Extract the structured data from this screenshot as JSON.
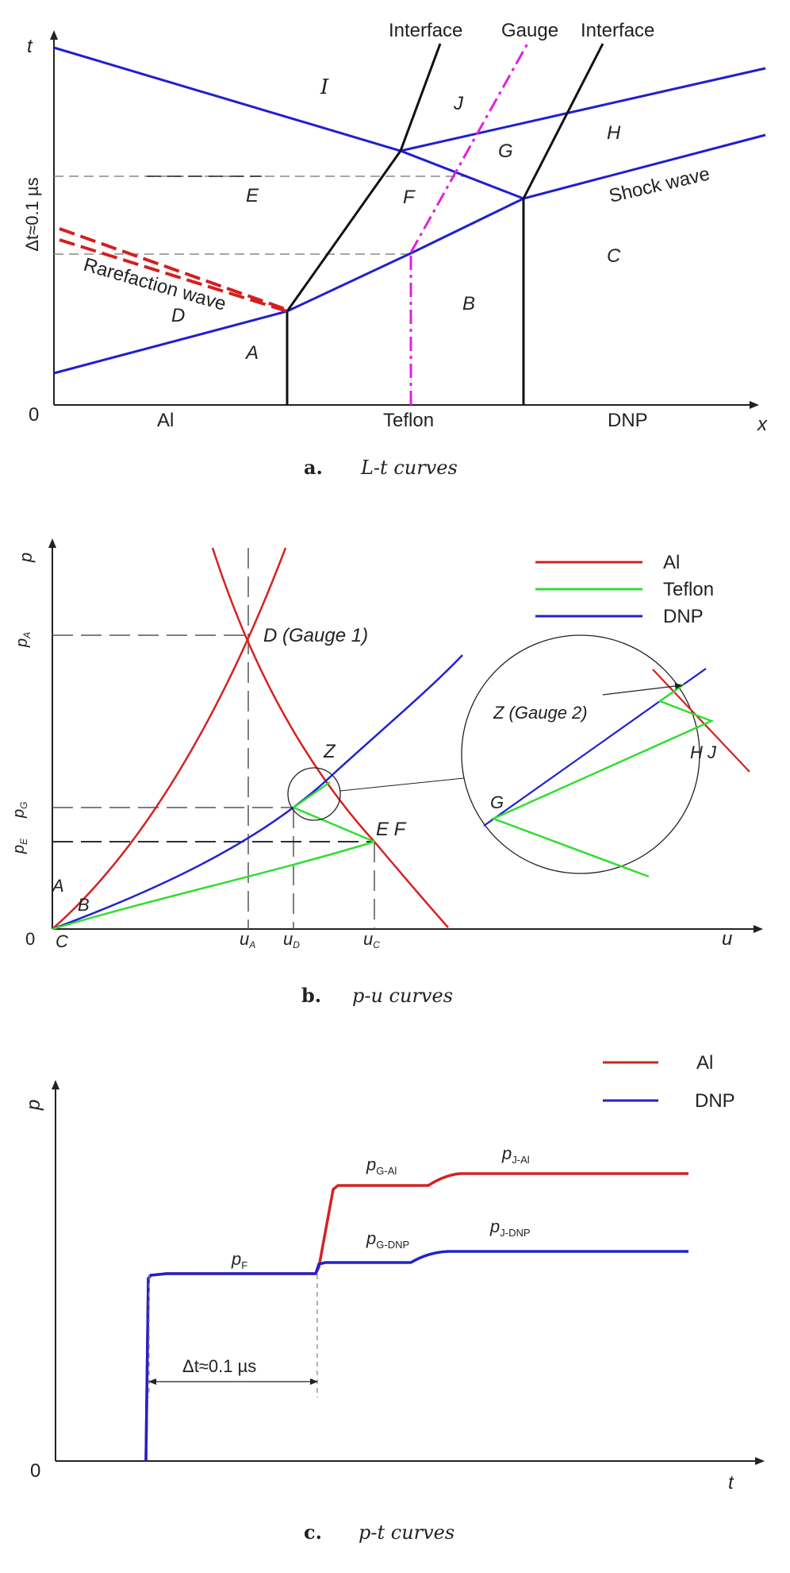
{
  "panel_a": {
    "axis": {
      "t": "t",
      "x": "x",
      "origin": "0",
      "dt": "Δt≈0.1 µs"
    },
    "top": {
      "interface_left": "Interface",
      "gauge": "Gauge",
      "interface_right": "Interface"
    },
    "regions": {
      "I": "I",
      "J": "J",
      "G": "G",
      "H": "H",
      "E": "E",
      "F": "F",
      "C": "C",
      "B": "B",
      "D": "D",
      "A": "A"
    },
    "waves": {
      "shock": "Shock wave",
      "rarefaction": "Rarefaction wave"
    },
    "materials": {
      "al": "Al",
      "teflon": "Teflon",
      "dnp": "DNP"
    },
    "caption": {
      "letter": "a.",
      "text": "L-t curves"
    },
    "colors": {
      "blue": "#1f1fd0",
      "red": "#d41f1f",
      "magenta": "#e020e0",
      "black": "#111111"
    }
  },
  "panel_b": {
    "axis": {
      "p": "p",
      "u": "u",
      "origin": "0"
    },
    "ticks": {
      "pA": "pA",
      "pG": "pG",
      "pE": "pE",
      "uA": "uA",
      "uD": "uD",
      "uC": "uC"
    },
    "points": {
      "D": "D (Gauge 1)",
      "Z": "Z",
      "EF": "E F",
      "A": "A",
      "B": "B",
      "C": "C"
    },
    "inset": {
      "Z": "Z (Gauge 2)",
      "HJ": "H J",
      "G": "G"
    },
    "legend": {
      "al": "Al",
      "teflon": "Teflon",
      "dnp": "DNP"
    },
    "caption": {
      "letter": "b.",
      "text": "p-u curves"
    },
    "colors": {
      "al": "#d42222",
      "teflon": "#33dd33",
      "dnp": "#2222cc"
    }
  },
  "panel_c": {
    "axis": {
      "p": "p",
      "t": "t",
      "origin": "0"
    },
    "labels": {
      "pF": "pF",
      "pG_Al": "pG-Al",
      "pJ_Al": "pJ-Al",
      "pG_DNP": "pG-DNP",
      "pJ_DNP": "pJ-DNP",
      "dt": "Δt≈0.1 µs"
    },
    "legend": {
      "al": "Al",
      "dnp": "DNP"
    },
    "caption": {
      "letter": "c.",
      "text": "p-t curves"
    },
    "colors": {
      "al": "#d42222",
      "dnp": "#2222cc"
    }
  }
}
